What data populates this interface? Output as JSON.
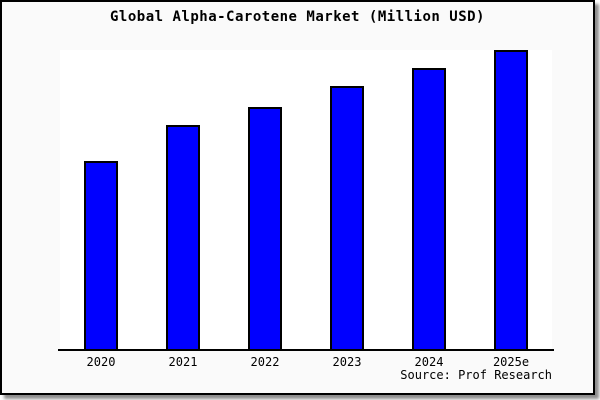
{
  "title": "Global Alpha-Carotene Market (Million USD)",
  "source": "Source: Prof Research",
  "colors": {
    "bar_fill": "#0000ff",
    "bar_border": "#000000",
    "figure_background": "#fafafa",
    "plot_background": "#ffffff",
    "axis": "#000000",
    "text": "#000000"
  },
  "chart_data": {
    "type": "bar",
    "title": "Global Alpha-Carotene Market (Million USD)",
    "categories": [
      "2020",
      "2021",
      "2022",
      "2023",
      "2024",
      "2025e"
    ],
    "values": [
      63,
      75,
      81,
      88,
      94,
      100
    ],
    "xlabel": "",
    "ylabel": "",
    "ylim": [
      0,
      100
    ],
    "grid": false,
    "legend": null,
    "y_axis_labels_visible": false,
    "annotation": "Source: Prof Research"
  }
}
